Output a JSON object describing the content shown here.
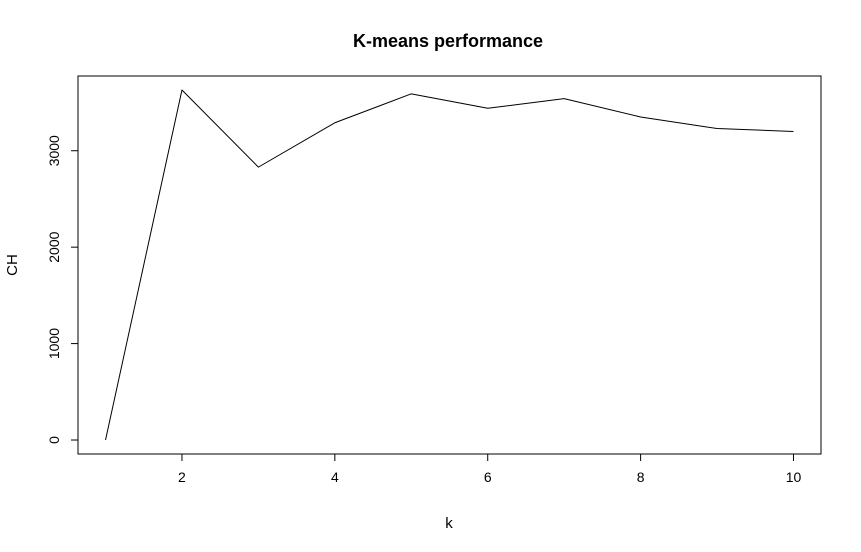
{
  "chart_data": {
    "type": "line",
    "title": "K-means performance",
    "xlabel": "k",
    "ylabel": "CH",
    "x": [
      1,
      2,
      3,
      4,
      5,
      6,
      7,
      8,
      9,
      10
    ],
    "series": [
      {
        "values": [
          0,
          3630,
          2830,
          3290,
          3590,
          3440,
          3540,
          3350,
          3230,
          3200
        ]
      }
    ],
    "xlim": [
      0.64,
      10.36
    ],
    "ylim": [
      -145,
      3775
    ],
    "xticks": [
      2,
      4,
      6,
      8,
      10
    ],
    "yticks": [
      0,
      1000,
      2000,
      3000
    ],
    "grid": false,
    "line_color": "#000000"
  }
}
